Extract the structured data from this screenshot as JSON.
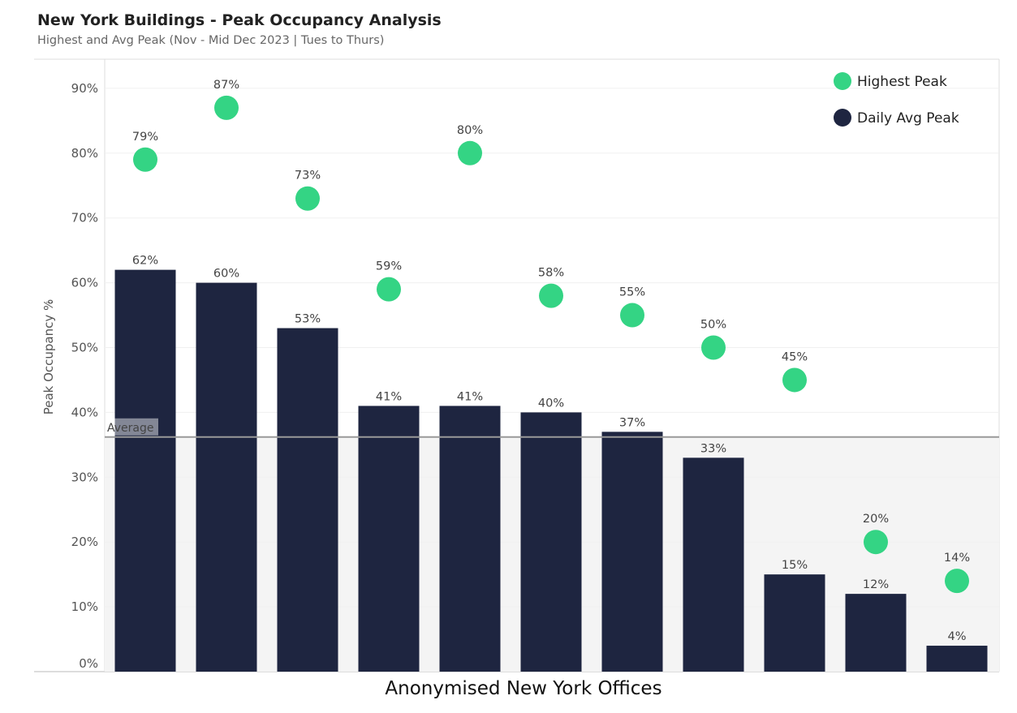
{
  "chart_data": {
    "type": "bar",
    "title": "New York Buildings - Peak Occupancy Analysis",
    "subtitle": "Highest and Avg Peak (Nov - Mid Dec 2023 | Tues to Thurs)",
    "xlabel": "Anonymised New York Offices",
    "ylabel": "Peak Occupancy %",
    "ylim": [
      0,
      94
    ],
    "yticks": [
      "0%",
      "10%",
      "20%",
      "30%",
      "40%",
      "50%",
      "60%",
      "70%",
      "80%",
      "90%"
    ],
    "grid": true,
    "legend_position": "top-right",
    "categories": [
      "",
      "",
      "",
      "",
      "",
      "",
      "",
      "",
      "",
      "",
      ""
    ],
    "series": [
      {
        "name": "Daily Avg Peak",
        "mark": "bar",
        "color": "#1e2540",
        "values": [
          62,
          60,
          53,
          41,
          41,
          40,
          37,
          33,
          15,
          12,
          4
        ],
        "labels": [
          "62%",
          "60%",
          "53%",
          "41%",
          "41%",
          "40%",
          "37%",
          "33%",
          "15%",
          "12%",
          "4%"
        ]
      },
      {
        "name": "Highest Peak",
        "mark": "circle",
        "color": "#34d484",
        "values": [
          79,
          87,
          73,
          59,
          80,
          58,
          55,
          50,
          45,
          20,
          14
        ],
        "labels": [
          "79%",
          "87%",
          "73%",
          "59%",
          "80%",
          "58%",
          "55%",
          "50%",
          "45%",
          "20%",
          "14%"
        ]
      }
    ],
    "reference_line": {
      "label": "Average",
      "value": 36.2
    }
  }
}
